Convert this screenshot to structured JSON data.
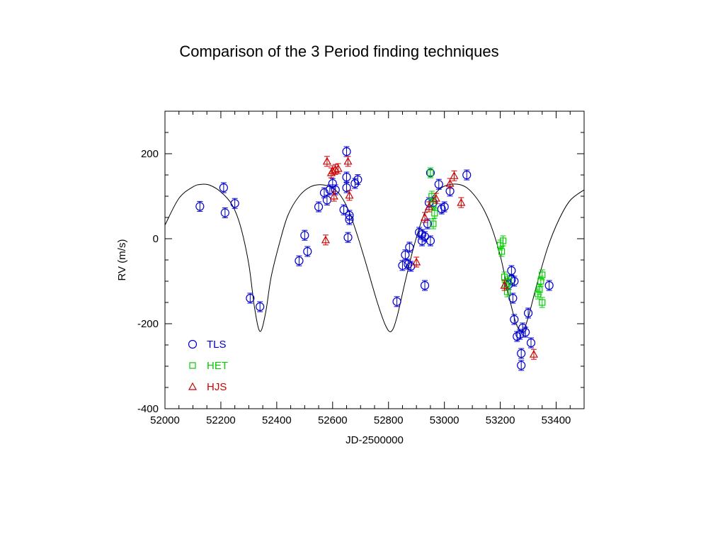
{
  "page": {
    "title": "Comparison of the 3 Period finding techniques"
  },
  "chart_data": {
    "type": "scatter",
    "title": "Comparison of the 3 Period finding techniques",
    "xlabel": "JD-2500000",
    "ylabel": "RV (m/s)",
    "xlim": [
      52000,
      53500
    ],
    "ylim": [
      -400,
      300
    ],
    "xticks": [
      52000,
      52200,
      52400,
      52600,
      52800,
      53000,
      53200,
      53400
    ],
    "yticks": [
      -400,
      -200,
      0,
      200
    ],
    "legend_position": "bottom-left",
    "model": {
      "name": "orbit fit",
      "points": [
        [
          52000,
          32
        ],
        [
          52050,
          95
        ],
        [
          52100,
          122
        ],
        [
          52130,
          128
        ],
        [
          52160,
          126
        ],
        [
          52200,
          110
        ],
        [
          52240,
          80
        ],
        [
          52270,
          30
        ],
        [
          52300,
          -60
        ],
        [
          52320,
          -160
        ],
        [
          52340,
          -218
        ],
        [
          52360,
          -175
        ],
        [
          52380,
          -90
        ],
        [
          52410,
          -10
        ],
        [
          52440,
          55
        ],
        [
          52480,
          100
        ],
        [
          52520,
          122
        ],
        [
          52560,
          127
        ],
        [
          52600,
          119
        ],
        [
          52630,
          100
        ],
        [
          52660,
          62
        ],
        [
          52690,
          5
        ],
        [
          52720,
          -60
        ],
        [
          52760,
          -150
        ],
        [
          52790,
          -205
        ],
        [
          52810,
          -218
        ],
        [
          52830,
          -185
        ],
        [
          52860,
          -100
        ],
        [
          52890,
          -20
        ],
        [
          52920,
          45
        ],
        [
          52950,
          90
        ],
        [
          52980,
          115
        ],
        [
          53010,
          126
        ],
        [
          53050,
          128
        ],
        [
          53080,
          120
        ],
        [
          53110,
          100
        ],
        [
          53140,
          70
        ],
        [
          53170,
          25
        ],
        [
          53200,
          -40
        ],
        [
          53220,
          -100
        ],
        [
          53240,
          -160
        ],
        [
          53260,
          -205
        ],
        [
          53280,
          -218
        ],
        [
          53300,
          -185
        ],
        [
          53330,
          -110
        ],
        [
          53370,
          -20
        ],
        [
          53410,
          45
        ],
        [
          53450,
          90
        ],
        [
          53500,
          115
        ]
      ]
    },
    "series": [
      {
        "name": "TLS",
        "marker": "circle",
        "color": "#0000cc",
        "points": [
          [
            52125,
            76
          ],
          [
            52210,
            120
          ],
          [
            52215,
            61
          ],
          [
            52250,
            83
          ],
          [
            52305,
            -140
          ],
          [
            52340,
            -160
          ],
          [
            52480,
            -52
          ],
          [
            52500,
            8
          ],
          [
            52510,
            -30
          ],
          [
            52550,
            75
          ],
          [
            52570,
            108
          ],
          [
            52580,
            91
          ],
          [
            52590,
            115
          ],
          [
            52600,
            130
          ],
          [
            52610,
            115
          ],
          [
            52640,
            68
          ],
          [
            52650,
            205
          ],
          [
            52650,
            145
          ],
          [
            52650,
            120
          ],
          [
            52660,
            55
          ],
          [
            52660,
            45
          ],
          [
            52655,
            3
          ],
          [
            52680,
            130
          ],
          [
            52690,
            139
          ],
          [
            52830,
            -148
          ],
          [
            52850,
            -63
          ],
          [
            52860,
            -38
          ],
          [
            52870,
            -60
          ],
          [
            52875,
            -20
          ],
          [
            52880,
            -65
          ],
          [
            52910,
            15
          ],
          [
            52920,
            10
          ],
          [
            52920,
            -5
          ],
          [
            52930,
            -110
          ],
          [
            52930,
            5
          ],
          [
            52940,
            35
          ],
          [
            52945,
            85
          ],
          [
            52950,
            -5
          ],
          [
            52950,
            155
          ],
          [
            52960,
            85
          ],
          [
            52980,
            128
          ],
          [
            52990,
            70
          ],
          [
            53000,
            75
          ],
          [
            53020,
            112
          ],
          [
            53080,
            150
          ],
          [
            53230,
            -108
          ],
          [
            53240,
            -97
          ],
          [
            53240,
            -75
          ],
          [
            53245,
            -140
          ],
          [
            53250,
            -100
          ],
          [
            53250,
            -190
          ],
          [
            53260,
            -230
          ],
          [
            53270,
            -225
          ],
          [
            53275,
            -270
          ],
          [
            53275,
            -298
          ],
          [
            53280,
            -210
          ],
          [
            53290,
            -220
          ],
          [
            53300,
            -175
          ],
          [
            53310,
            -245
          ],
          [
            53375,
            -110
          ]
        ]
      },
      {
        "name": "HET",
        "marker": "square",
        "color": "#00cc00",
        "points": [
          [
            52950,
            155
          ],
          [
            52955,
            100
          ],
          [
            52960,
            80
          ],
          [
            52965,
            60
          ],
          [
            52960,
            35
          ],
          [
            53200,
            -15
          ],
          [
            53210,
            -5
          ],
          [
            53205,
            -30
          ],
          [
            53215,
            -90
          ],
          [
            53220,
            -110
          ],
          [
            53225,
            -125
          ],
          [
            53230,
            -100
          ],
          [
            53335,
            -130
          ],
          [
            53340,
            -120
          ],
          [
            53345,
            -100
          ],
          [
            53350,
            -85
          ],
          [
            53350,
            -150
          ]
        ]
      },
      {
        "name": "HJS",
        "marker": "triangle",
        "color": "#cc0000",
        "points": [
          [
            52580,
            182
          ],
          [
            52595,
            155
          ],
          [
            52600,
            160
          ],
          [
            52605,
            100
          ],
          [
            52610,
            163
          ],
          [
            52620,
            165
          ],
          [
            52575,
            -3
          ],
          [
            52655,
            182
          ],
          [
            52660,
            102
          ],
          [
            52900,
            -55
          ],
          [
            52930,
            50
          ],
          [
            52945,
            75
          ],
          [
            52970,
            95
          ],
          [
            53020,
            130
          ],
          [
            53035,
            148
          ],
          [
            53060,
            85
          ],
          [
            53215,
            -110
          ],
          [
            53320,
            -272
          ]
        ]
      }
    ]
  }
}
